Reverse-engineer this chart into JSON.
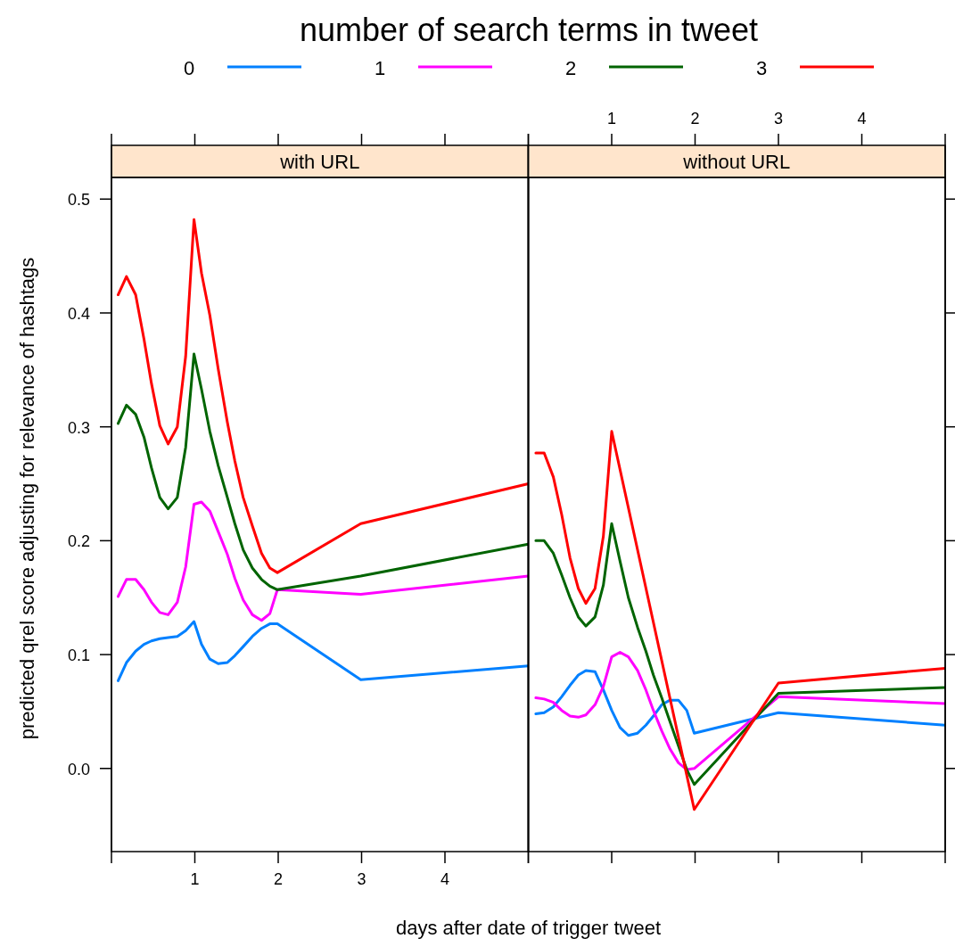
{
  "chart_data": [
    {
      "type": "line",
      "title": "with URL",
      "legend_title": "number of search terms in tweet",
      "legend": "top",
      "xlabel": "days after date of trigger tweet",
      "ylabel": "predicted qrel score adjusting for relevance of hashtags",
      "x": [
        0.08,
        0.18,
        0.29,
        0.39,
        0.48,
        0.58,
        0.68,
        0.79,
        0.89,
        0.99,
        1.08,
        1.18,
        1.28,
        1.39,
        1.48,
        1.58,
        1.69,
        1.8,
        1.9,
        1.99,
        2.99,
        5
      ],
      "xlim": [
        0,
        5
      ],
      "ylim": [
        -0.073,
        0.519
      ],
      "xticks": [
        1,
        2,
        3,
        4
      ],
      "yticks": [
        {
          "value": 0,
          "label": "0.0"
        },
        0.1,
        0.2,
        0.3,
        0.4,
        0.5
      ],
      "grid": false,
      "line_style": "solid",
      "marker": "none",
      "series": [
        {
          "name": "0",
          "color": "#0080ff",
          "values": [
            0.077,
            0.093,
            0.103,
            0.109,
            0.112,
            0.114,
            0.115,
            0.116,
            0.121,
            0.129,
            0.109,
            0.096,
            0.092,
            0.093,
            0.099,
            0.107,
            0.116,
            0.123,
            0.127,
            0.127,
            0.078,
            0.09
          ]
        },
        {
          "name": "1",
          "color": "#ff00ff",
          "values": [
            0.151,
            0.166,
            0.166,
            0.157,
            0.146,
            0.137,
            0.135,
            0.146,
            0.177,
            0.232,
            0.234,
            0.226,
            0.208,
            0.188,
            0.167,
            0.148,
            0.135,
            0.13,
            0.136,
            0.157,
            0.153,
            0.169
          ]
        },
        {
          "name": "2",
          "color": "#006400",
          "values": [
            0.303,
            0.319,
            0.311,
            0.291,
            0.264,
            0.238,
            0.228,
            0.238,
            0.282,
            0.364,
            0.333,
            0.296,
            0.266,
            0.238,
            0.215,
            0.192,
            0.176,
            0.166,
            0.16,
            0.157,
            0.169,
            0.197
          ]
        },
        {
          "name": "3",
          "color": "#ff0000",
          "values": [
            0.416,
            0.432,
            0.416,
            0.377,
            0.338,
            0.301,
            0.285,
            0.3,
            0.362,
            0.482,
            0.435,
            0.398,
            0.351,
            0.304,
            0.27,
            0.238,
            0.213,
            0.189,
            0.176,
            0.172,
            0.215,
            0.25
          ]
        }
      ]
    },
    {
      "type": "line",
      "title": "without URL",
      "x": [
        0.09,
        0.19,
        0.3,
        0.4,
        0.5,
        0.6,
        0.69,
        0.8,
        0.9,
        1,
        1.1,
        1.2,
        1.31,
        1.41,
        1.5,
        1.6,
        1.7,
        1.8,
        1.9,
        1.99,
        3,
        5
      ],
      "xlim": [
        0,
        5
      ],
      "ylim": [
        -0.073,
        0.519
      ],
      "xticks": [
        1,
        2,
        3,
        4
      ],
      "yticks": [
        0,
        0.1,
        0.2,
        0.3,
        0.4,
        0.5
      ],
      "tick_labels": "x",
      "grid": false,
      "line_style": "solid",
      "marker": "none",
      "series": [
        {
          "color": "#0080ff",
          "values": [
            0.048,
            0.049,
            0.054,
            0.063,
            0.073,
            0.082,
            0.086,
            0.085,
            0.069,
            0.051,
            0.036,
            0.029,
            0.031,
            0.038,
            0.046,
            0.056,
            0.06,
            0.06,
            0.051,
            0.031,
            0.049,
            0.038
          ]
        },
        {
          "color": "#ff00ff",
          "values": [
            0.062,
            0.061,
            0.058,
            0.051,
            0.046,
            0.045,
            0.047,
            0.056,
            0.072,
            0.098,
            0.102,
            0.098,
            0.086,
            0.069,
            0.051,
            0.033,
            0.017,
            0.005,
            -0.001,
            0.0,
            0.063,
            0.057
          ]
        },
        {
          "color": "#006400",
          "values": [
            0.2,
            0.2,
            0.189,
            0.17,
            0.15,
            0.133,
            0.125,
            0.133,
            0.161,
            0.215,
            0.182,
            0.15,
            0.124,
            0.103,
            0.082,
            0.062,
            0.041,
            0.02,
            -0.001,
            -0.014,
            0.066,
            0.071
          ]
        },
        {
          "color": "#ff0000",
          "x": [
            0.09,
            0.19,
            0.3,
            0.4,
            0.5,
            0.6,
            0.69,
            0.8,
            0.9,
            1,
            1.99,
            3,
            5
          ],
          "values": [
            0.277,
            0.277,
            0.256,
            0.223,
            0.185,
            0.158,
            0.145,
            0.158,
            0.204,
            0.296,
            -0.036,
            0.075,
            0.088
          ]
        }
      ]
    }
  ]
}
